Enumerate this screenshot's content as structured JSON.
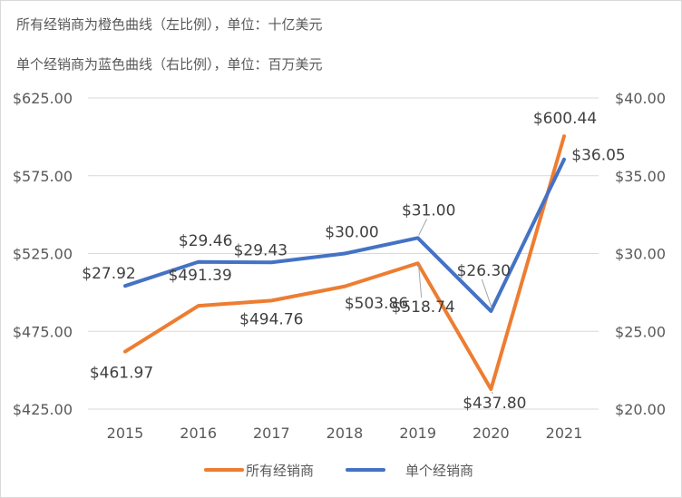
{
  "notes": [
    "所有经销商为橙色曲线（左比例），单位：十亿美元",
    "单个经销商为蓝色曲线（右比例），单位：百万美元"
  ],
  "chart_data": {
    "type": "line",
    "categories": [
      "2015",
      "2016",
      "2017",
      "2018",
      "2019",
      "2020",
      "2021"
    ],
    "y_left": {
      "lim": [
        425,
        625
      ],
      "ticks": [
        425,
        475,
        525,
        575,
        625
      ],
      "tick_labels": [
        "$425.00",
        "$475.00",
        "$525.00",
        "$575.00",
        "$625.00"
      ]
    },
    "y_right": {
      "lim": [
        20,
        40
      ],
      "ticks": [
        20,
        25,
        30,
        35,
        40
      ],
      "tick_labels": [
        "$20.00",
        "$25.00",
        "$30.00",
        "$35.00",
        "$40.00"
      ]
    },
    "series": [
      {
        "name": "所有经销商",
        "axis": "left",
        "color": "#ED7D31",
        "values": [
          461.97,
          491.39,
          494.76,
          503.86,
          518.74,
          437.8,
          600.44
        ],
        "labels": [
          "$461.97",
          "$491.39",
          "$494.76",
          "$503.86",
          "$518.74",
          "$437.80",
          "$600.44"
        ]
      },
      {
        "name": "单个经销商",
        "axis": "right",
        "color": "#4472C4",
        "values": [
          27.92,
          29.46,
          29.43,
          30.0,
          31.0,
          26.3,
          36.05
        ],
        "labels": [
          "$27.92",
          "$29.46",
          "$29.43",
          "$30.00",
          "$31.00",
          "$26.30",
          "$36.05"
        ]
      }
    ],
    "grid": true,
    "legend_position": "bottom"
  }
}
